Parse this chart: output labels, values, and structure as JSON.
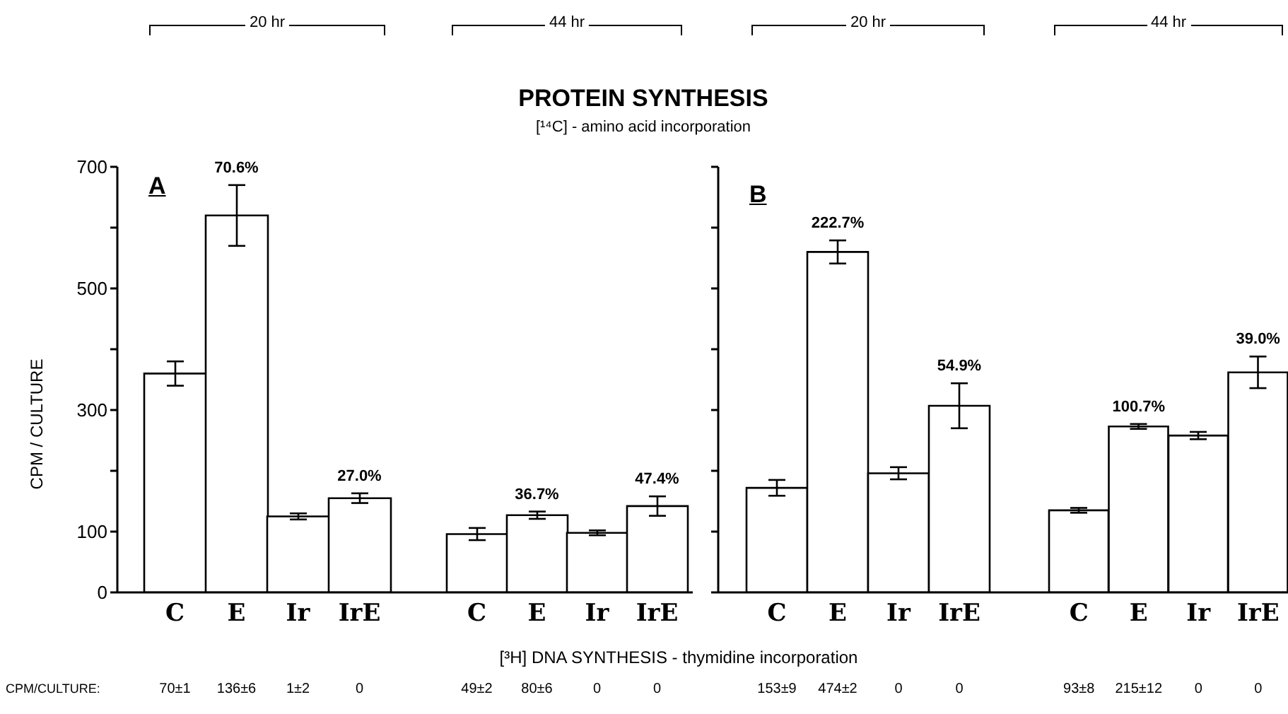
{
  "chart_data": [
    {
      "type": "bar",
      "ylabel": "CPM / CULTURE",
      "categories": [
        "C",
        "E",
        "Ir",
        "IrE"
      ],
      "values": [
        360,
        620,
        125,
        155
      ],
      "errors": [
        20,
        50,
        5,
        8
      ],
      "color": "#ffffff",
      "ylim": [
        0,
        700
      ],
      "yticks": [
        0,
        100,
        {
          "value": 200,
          "label": null
        },
        300,
        {
          "value": 400,
          "label": null
        },
        500,
        {
          "value": 600,
          "label": null
        },
        700
      ],
      "annotations": [
        "20 hr",
        "70±1",
        "136±6",
        "1±2",
        "0",
        "A",
        "CPM/CULTURE:",
        "[³H] DNA SYNTHESIS - thymidine incorporation",
        {
          "text": "70.6%",
          "x": "E",
          "y": 670
        },
        {
          "text": "27.0%",
          "x": "IrE",
          "y": 163
        }
      ]
    },
    {
      "type": "bar",
      "title": "PROTEIN SYNTHESIS",
      "subtitle": "[¹⁴C] - amino acid incorporation",
      "categories": [
        "C",
        "E",
        "Ir",
        "IrE"
      ],
      "values": [
        96,
        127,
        98,
        142
      ],
      "errors": [
        10,
        6,
        4,
        16
      ],
      "color": "#ffffff",
      "ylim": [
        0,
        700
      ],
      "tick_labels": "x",
      "annotations": [
        "44 hr",
        "49±2",
        "80±6",
        "0",
        "0",
        {
          "text": "36.7%",
          "x": "E",
          "y": 133
        },
        {
          "text": "47.4%",
          "x": "IrE",
          "y": 158
        }
      ]
    },
    {
      "type": "bar",
      "categories": [
        "C",
        "E",
        "Ir",
        "IrE"
      ],
      "values": [
        172,
        560,
        196,
        307
      ],
      "errors": [
        13,
        19,
        10,
        37
      ],
      "color": "#ffffff",
      "ylim": [
        0,
        700
      ],
      "yticks": [
        {
          "value": 0,
          "label": null
        },
        {
          "value": 100,
          "label": null
        },
        {
          "value": 200,
          "label": null
        },
        {
          "value": 300,
          "label": null
        },
        {
          "value": 400,
          "label": null
        },
        {
          "value": 500,
          "label": null
        },
        {
          "value": 600,
          "label": null
        },
        {
          "value": 700,
          "label": null
        }
      ],
      "tick_labels": "x",
      "annotations": [
        "20 hr",
        "153±9",
        "474±2",
        "0",
        "0",
        "B",
        {
          "text": "222.7%",
          "x": "E",
          "y": 579
        },
        {
          "text": "54.9%",
          "x": "IrE",
          "y": 344
        }
      ]
    },
    {
      "type": "bar",
      "categories": [
        "C",
        "E",
        "Ir",
        "IrE"
      ],
      "values": [
        135,
        273,
        258,
        362
      ],
      "errors": [
        4,
        4,
        6,
        26
      ],
      "color": "#ffffff",
      "ylim": [
        0,
        700
      ],
      "tick_labels": "x",
      "annotations": [
        "44 hr",
        "93±8",
        "215±12",
        "0",
        "0",
        {
          "text": "100.7%",
          "x": "E",
          "y": 277
        },
        {
          "text": "39.0%",
          "x": "IrE",
          "y": 388
        }
      ]
    }
  ]
}
